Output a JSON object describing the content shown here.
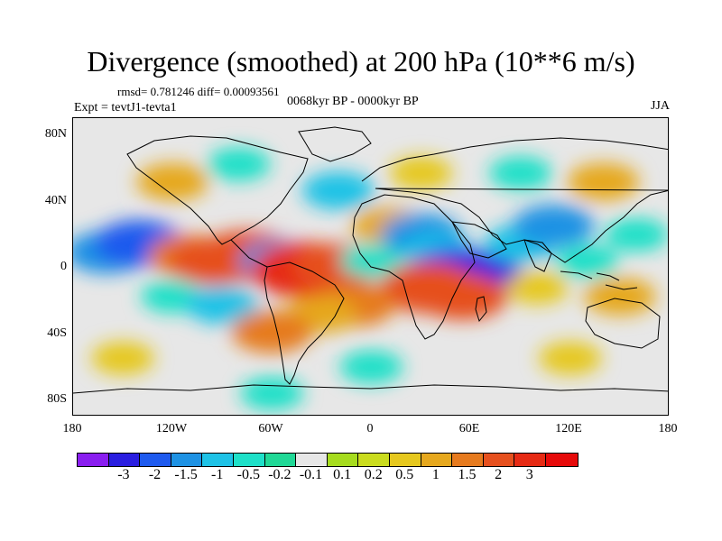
{
  "title": "Divergence (smoothed) at 200 hPa (10**6 m/s)",
  "stats": "rmsd= 0.781246 diff= 0.00093561",
  "experiment": "Expt = tevtJ1-tevta1",
  "period": "0068kyr BP - 0000kyr BP",
  "season": "JJA",
  "map": {
    "projection": "cylindrical-equidistant",
    "lon_range": [
      -180,
      180
    ],
    "lat_range": [
      -90,
      90
    ],
    "y_ticks": [
      "80N",
      "40N",
      "0",
      "40S",
      "80S"
    ],
    "x_ticks": [
      "180",
      "120W",
      "60W",
      "0",
      "60E",
      "120E",
      "180"
    ],
    "fields": [
      {
        "lon": -160,
        "lat": 10,
        "value": -1.5
      },
      {
        "lon": -140,
        "lat": 15,
        "value": -2
      },
      {
        "lon": -110,
        "lat": 8,
        "value": 1.5
      },
      {
        "lon": -95,
        "lat": 5,
        "value": 2
      },
      {
        "lon": -75,
        "lat": 8,
        "value": 2.5
      },
      {
        "lon": -120,
        "lat": -15,
        "value": -0.5
      },
      {
        "lon": -90,
        "lat": -20,
        "value": -1
      },
      {
        "lon": -55,
        "lat": 5,
        "value": -1.5
      },
      {
        "lon": -40,
        "lat": 0,
        "value": 3
      },
      {
        "lon": -20,
        "lat": 2,
        "value": 2
      },
      {
        "lon": 0,
        "lat": 5,
        "value": -0.5
      },
      {
        "lon": 10,
        "lat": 25,
        "value": 1
      },
      {
        "lon": 30,
        "lat": 20,
        "value": -1.5
      },
      {
        "lon": 40,
        "lat": 10,
        "value": -1
      },
      {
        "lon": 50,
        "lat": 0,
        "value": -2
      },
      {
        "lon": 60,
        "lat": -5,
        "value": -3
      },
      {
        "lon": 55,
        "lat": -15,
        "value": 2
      },
      {
        "lon": 35,
        "lat": -10,
        "value": 2.5
      },
      {
        "lon": -10,
        "lat": -20,
        "value": 1.5
      },
      {
        "lon": -30,
        "lat": -25,
        "value": 1
      },
      {
        "lon": -60,
        "lat": -35,
        "value": 1.5
      },
      {
        "lon": 90,
        "lat": 15,
        "value": -1
      },
      {
        "lon": 110,
        "lat": 25,
        "value": -1.5
      },
      {
        "lon": 130,
        "lat": 5,
        "value": -0.5
      },
      {
        "lon": 100,
        "lat": -10,
        "value": 0.5
      },
      {
        "lon": 150,
        "lat": -15,
        "value": 1
      },
      {
        "lon": 160,
        "lat": 20,
        "value": -0.5
      },
      {
        "lon": -120,
        "lat": 50,
        "value": 1
      },
      {
        "lon": -80,
        "lat": 60,
        "value": -0.5
      },
      {
        "lon": -20,
        "lat": 45,
        "value": -1
      },
      {
        "lon": 30,
        "lat": 55,
        "value": 0.5
      },
      {
        "lon": 90,
        "lat": 55,
        "value": -0.5
      },
      {
        "lon": 140,
        "lat": 50,
        "value": 1
      },
      {
        "lon": -150,
        "lat": -50,
        "value": 0.5
      },
      {
        "lon": 0,
        "lat": -55,
        "value": -0.5
      },
      {
        "lon": 120,
        "lat": -50,
        "value": 0.5
      },
      {
        "lon": -60,
        "lat": -70,
        "value": -0.5
      }
    ]
  },
  "colorbar": {
    "colors": [
      "#8a1ef0",
      "#2a1ee0",
      "#1e5aee",
      "#1e92e4",
      "#1ec2e6",
      "#1ee0c8",
      "#20d896",
      "#e6e6e6",
      "#a6dc1e",
      "#cadc1e",
      "#e6c81e",
      "#e6a81e",
      "#e67a1e",
      "#e6501e",
      "#e62a14",
      "#e60a0a"
    ],
    "labels": [
      "-3",
      "-2",
      "-1.5",
      "-1",
      "-0.5",
      "-0.2",
      "-0.1",
      "0.1",
      "0.2",
      "0.5",
      "1",
      "1.5",
      "2",
      "3"
    ]
  }
}
